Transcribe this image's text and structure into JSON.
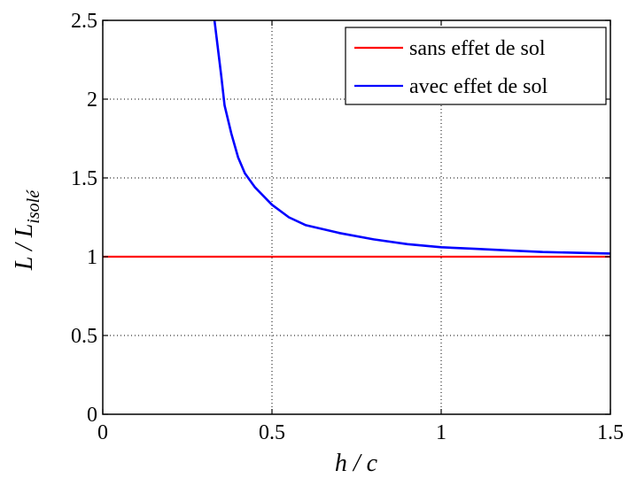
{
  "chart_data": {
    "type": "line",
    "xlabel": "h / c",
    "ylabel": {
      "main": "L / L",
      "sub": "isolé"
    },
    "xlim": [
      0,
      1.5
    ],
    "ylim": [
      0,
      2.5
    ],
    "xticks": [
      0,
      0.5,
      1,
      1.5
    ],
    "xtick_labels": [
      "0",
      "0.5",
      "1",
      "1.5"
    ],
    "yticks": [
      0,
      0.5,
      1,
      1.5,
      2,
      2.5
    ],
    "ytick_labels": [
      "0",
      "0.5",
      "1",
      "1.5",
      "2",
      "2.5"
    ],
    "grid": true,
    "grid_style": "dotted",
    "legend_position": "top-right",
    "series": [
      {
        "name": "sans effet de sol",
        "color": "#ff0000",
        "x": [
          0,
          1.5
        ],
        "y": [
          1,
          1
        ]
      },
      {
        "name": "avec effet de sol",
        "color": "#0000ff",
        "x": [
          0.33,
          0.35,
          0.36,
          0.38,
          0.4,
          0.42,
          0.45,
          0.5,
          0.55,
          0.6,
          0.7,
          0.8,
          0.9,
          1.0,
          1.1,
          1.2,
          1.3,
          1.4,
          1.5
        ],
        "y": [
          2.5,
          2.15,
          1.96,
          1.78,
          1.63,
          1.53,
          1.44,
          1.33,
          1.25,
          1.2,
          1.15,
          1.11,
          1.08,
          1.06,
          1.05,
          1.04,
          1.03,
          1.025,
          1.02
        ]
      }
    ]
  }
}
